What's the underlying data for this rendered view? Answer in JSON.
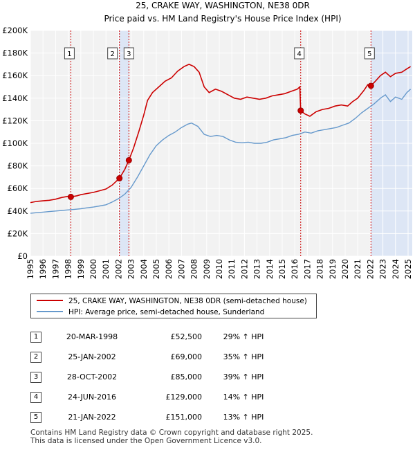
{
  "chart_data": {
    "type": "line",
    "title": "25, CRAKE WAY, WASHINGTON, NE38 0DR",
    "subtitle": "Price paid vs. HM Land Registry's House Price Index (HPI)",
    "ylim": [
      0,
      200000
    ],
    "xlim": [
      1995,
      2025.33
    ],
    "y_ticks": [
      0,
      20000,
      40000,
      60000,
      80000,
      100000,
      120000,
      140000,
      160000,
      180000,
      200000
    ],
    "y_tick_labels": [
      "£0",
      "£20K",
      "£40K",
      "£60K",
      "£80K",
      "£100K",
      "£120K",
      "£140K",
      "£160K",
      "£180K",
      "£200K"
    ],
    "x_ticks": [
      "1995",
      "1996",
      "1997",
      "1998",
      "1999",
      "2000",
      "2001",
      "2002",
      "2003",
      "2004",
      "2005",
      "2006",
      "2007",
      "2008",
      "2009",
      "2010",
      "2011",
      "2012",
      "2013",
      "2014",
      "2015",
      "2016",
      "2017",
      "2018",
      "2019",
      "2020",
      "2021",
      "2022",
      "2023",
      "2024",
      "2025"
    ],
    "series": [
      {
        "name": "25, CRAKE WAY, WASHINGTON, NE38 0DR (semi-detached house)",
        "color": "#cc0000",
        "points": [
          [
            1995.0,
            47500
          ],
          [
            1995.5,
            48500
          ],
          [
            1996.0,
            49000
          ],
          [
            1996.5,
            49500
          ],
          [
            1997.0,
            50500
          ],
          [
            1997.5,
            52000
          ],
          [
            1998.0,
            53000
          ],
          [
            1998.21,
            52500
          ],
          [
            1998.7,
            53500
          ],
          [
            1999.0,
            54500
          ],
          [
            1999.5,
            55500
          ],
          [
            2000.0,
            56500
          ],
          [
            2000.5,
            58000
          ],
          [
            2001.0,
            59500
          ],
          [
            2001.5,
            63000
          ],
          [
            2002.07,
            69000
          ],
          [
            2002.5,
            77000
          ],
          [
            2002.82,
            85000
          ],
          [
            2003.2,
            96000
          ],
          [
            2003.6,
            110000
          ],
          [
            2004.0,
            125000
          ],
          [
            2004.3,
            138000
          ],
          [
            2004.7,
            145000
          ],
          [
            2005.2,
            150000
          ],
          [
            2005.7,
            155000
          ],
          [
            2006.2,
            158000
          ],
          [
            2006.7,
            164000
          ],
          [
            2007.2,
            168000
          ],
          [
            2007.6,
            170000
          ],
          [
            2008.0,
            168000
          ],
          [
            2008.4,
            163000
          ],
          [
            2008.8,
            150000
          ],
          [
            2009.2,
            145000
          ],
          [
            2009.7,
            148000
          ],
          [
            2010.2,
            146000
          ],
          [
            2010.7,
            143000
          ],
          [
            2011.2,
            140000
          ],
          [
            2011.7,
            139000
          ],
          [
            2012.2,
            141000
          ],
          [
            2012.7,
            140000
          ],
          [
            2013.2,
            139000
          ],
          [
            2013.7,
            140000
          ],
          [
            2014.2,
            142000
          ],
          [
            2014.7,
            143000
          ],
          [
            2015.2,
            144000
          ],
          [
            2015.7,
            146000
          ],
          [
            2016.2,
            148000
          ],
          [
            2016.4,
            150000
          ],
          [
            2016.47,
            129000
          ],
          [
            2016.8,
            126000
          ],
          [
            2017.2,
            124000
          ],
          [
            2017.7,
            128000
          ],
          [
            2018.2,
            130000
          ],
          [
            2018.7,
            131000
          ],
          [
            2019.2,
            133000
          ],
          [
            2019.7,
            134000
          ],
          [
            2020.2,
            133000
          ],
          [
            2020.6,
            137000
          ],
          [
            2021.0,
            140000
          ],
          [
            2021.5,
            147000
          ],
          [
            2021.8,
            152000
          ],
          [
            2022.05,
            151000
          ],
          [
            2022.4,
            155000
          ],
          [
            2022.8,
            160000
          ],
          [
            2023.2,
            163000
          ],
          [
            2023.6,
            159000
          ],
          [
            2024.0,
            162000
          ],
          [
            2024.5,
            163000
          ],
          [
            2024.9,
            166000
          ],
          [
            2025.2,
            168000
          ]
        ]
      },
      {
        "name": "HPI: Average price, semi-detached house, Sunderland",
        "color": "#6699cc",
        "points": [
          [
            1995.0,
            38000
          ],
          [
            1995.5,
            38500
          ],
          [
            1996.0,
            39000
          ],
          [
            1996.5,
            39500
          ],
          [
            1997.0,
            40000
          ],
          [
            1997.5,
            40500
          ],
          [
            1998.0,
            41000
          ],
          [
            1998.5,
            41500
          ],
          [
            1999.0,
            42000
          ],
          [
            1999.5,
            42800
          ],
          [
            2000.0,
            43500
          ],
          [
            2000.5,
            44500
          ],
          [
            2001.0,
            45500
          ],
          [
            2001.5,
            48000
          ],
          [
            2002.0,
            51000
          ],
          [
            2002.5,
            55000
          ],
          [
            2003.0,
            61000
          ],
          [
            2003.5,
            70000
          ],
          [
            2004.0,
            80000
          ],
          [
            2004.5,
            90000
          ],
          [
            2005.0,
            98000
          ],
          [
            2005.5,
            103000
          ],
          [
            2006.0,
            107000
          ],
          [
            2006.5,
            110000
          ],
          [
            2007.0,
            114000
          ],
          [
            2007.5,
            117000
          ],
          [
            2007.8,
            118000
          ],
          [
            2008.3,
            115000
          ],
          [
            2008.8,
            108000
          ],
          [
            2009.3,
            106000
          ],
          [
            2009.8,
            107000
          ],
          [
            2010.3,
            106000
          ],
          [
            2010.8,
            103000
          ],
          [
            2011.3,
            101000
          ],
          [
            2011.8,
            100500
          ],
          [
            2012.3,
            101000
          ],
          [
            2012.8,
            100000
          ],
          [
            2013.3,
            100000
          ],
          [
            2013.8,
            101000
          ],
          [
            2014.3,
            103000
          ],
          [
            2014.8,
            104000
          ],
          [
            2015.3,
            105000
          ],
          [
            2015.8,
            107000
          ],
          [
            2016.3,
            108000
          ],
          [
            2016.8,
            110000
          ],
          [
            2017.3,
            109000
          ],
          [
            2017.8,
            111000
          ],
          [
            2018.3,
            112000
          ],
          [
            2018.8,
            113000
          ],
          [
            2019.3,
            114000
          ],
          [
            2019.8,
            116000
          ],
          [
            2020.3,
            118000
          ],
          [
            2020.8,
            122000
          ],
          [
            2021.3,
            127000
          ],
          [
            2021.8,
            131000
          ],
          [
            2022.3,
            135000
          ],
          [
            2022.8,
            140000
          ],
          [
            2023.2,
            143000
          ],
          [
            2023.6,
            137000
          ],
          [
            2024.0,
            141000
          ],
          [
            2024.5,
            139000
          ],
          [
            2024.9,
            145000
          ],
          [
            2025.2,
            148000
          ]
        ]
      }
    ],
    "sales": [
      {
        "label": "1",
        "date": "20-MAR-1998",
        "x": 1998.21,
        "price": 52500,
        "price_text": "£52,500",
        "hpi_text": "29% ↑ HPI"
      },
      {
        "label": "2",
        "date": "25-JAN-2002",
        "x": 2002.07,
        "price": 69000,
        "price_text": "£69,000",
        "hpi_text": "35% ↑ HPI"
      },
      {
        "label": "3",
        "date": "28-OCT-2002",
        "x": 2002.82,
        "price": 85000,
        "price_text": "£85,000",
        "hpi_text": "39% ↑ HPI"
      },
      {
        "label": "4",
        "date": "24-JUN-2016",
        "x": 2016.47,
        "price": 129000,
        "price_text": "£129,000",
        "hpi_text": "14% ↑ HPI"
      },
      {
        "label": "5",
        "date": "21-JAN-2022",
        "x": 2022.05,
        "price": 151000,
        "price_text": "£151,000",
        "hpi_text": "13% ↑ HPI"
      }
    ]
  },
  "legend": {
    "property": "25, CRAKE WAY, WASHINGTON, NE38 0DR (semi-detached house)",
    "hpi": "HPI: Average price, semi-detached house, Sunderland"
  },
  "footer": {
    "line1": "Contains HM Land Registry data © Crown copyright and database right 2025.",
    "line2": "This data is licensed under the Open Government Licence v3.0."
  },
  "colors": {
    "property_line": "#cc0000",
    "hpi_line": "#6699cc",
    "shade": "#dde6f5",
    "plot_bg": "#f2f2f2",
    "grid": "#ffffff"
  }
}
